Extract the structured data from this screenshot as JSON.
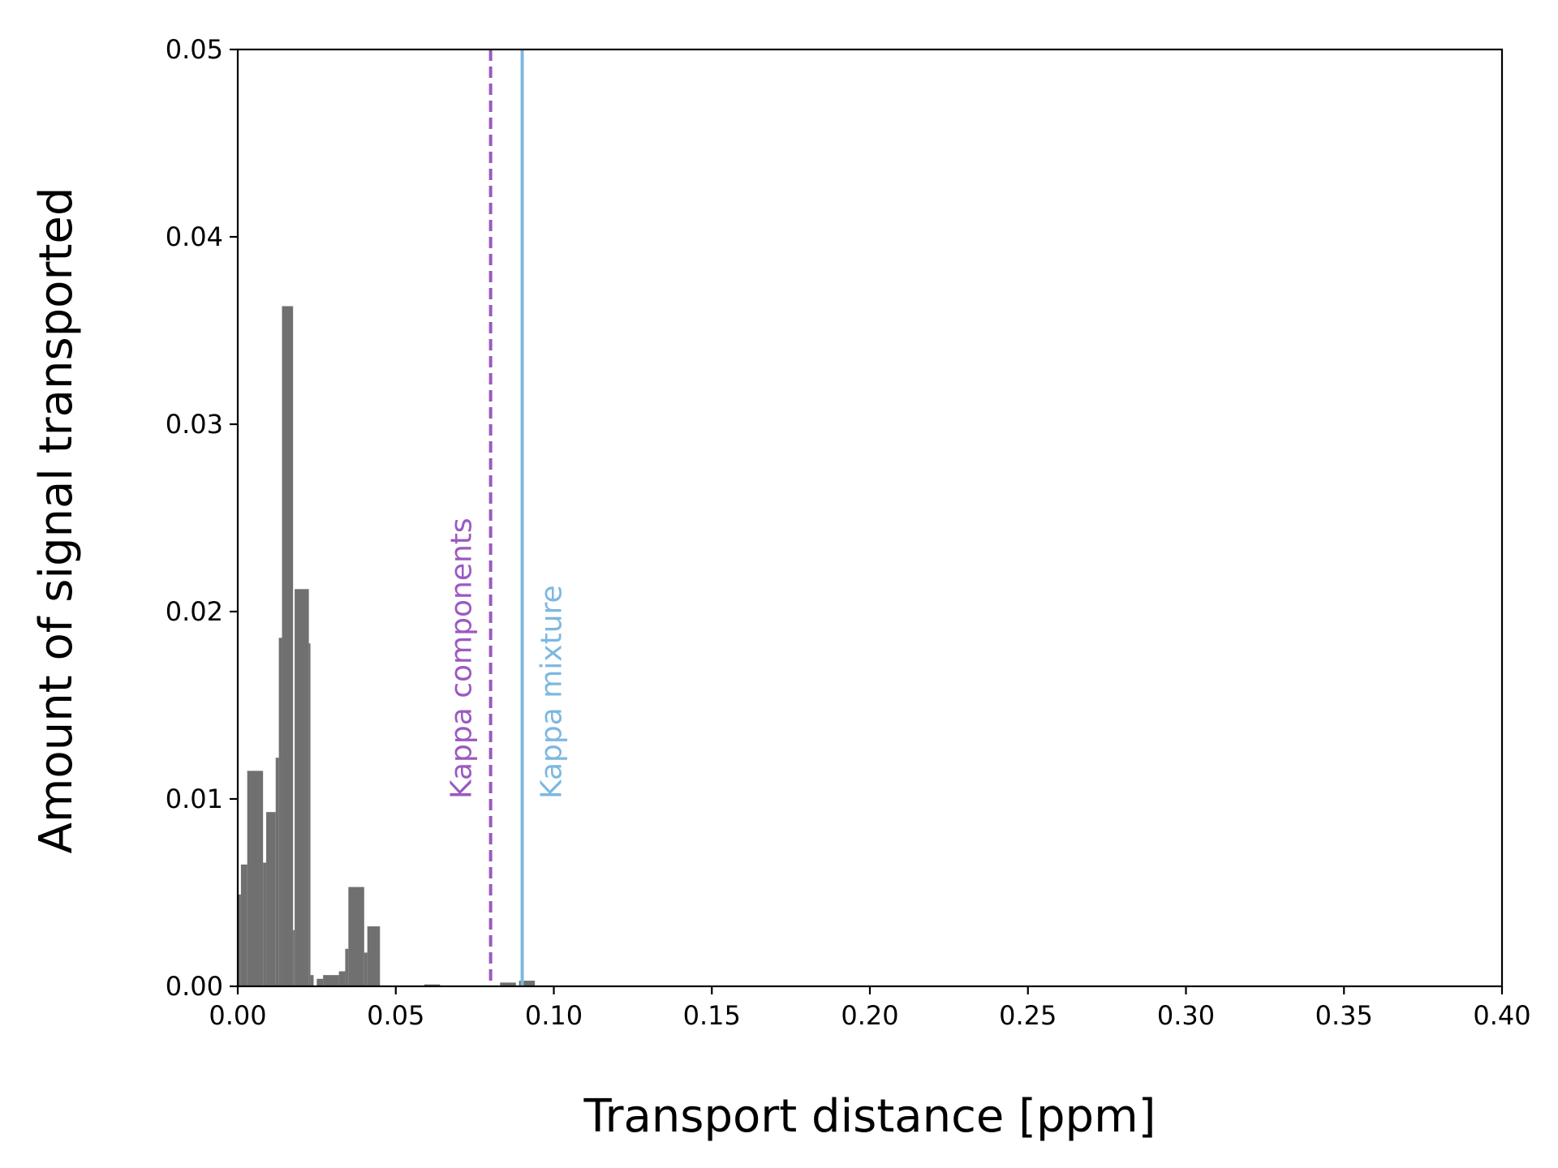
{
  "chart_data": {
    "type": "bar",
    "title": "",
    "xlabel": "Transport distance [ppm]",
    "ylabel": "Amount of signal transported",
    "xlim": [
      0,
      0.4
    ],
    "ylim": [
      0,
      0.05
    ],
    "xticks": [
      "0.00",
      "0.05",
      "0.10",
      "0.15",
      "0.20",
      "0.25",
      "0.30",
      "0.35",
      "0.40"
    ],
    "yticks": [
      "0.00",
      "0.01",
      "0.02",
      "0.03",
      "0.04",
      "0.05"
    ],
    "grid": false,
    "legend": "none",
    "bar_color": "#707070",
    "bars": [
      {
        "x0": 0.0,
        "x1": 0.001,
        "y": 0.0049
      },
      {
        "x0": 0.001,
        "x1": 0.003,
        "y": 0.0065
      },
      {
        "x0": 0.003,
        "x1": 0.008,
        "y": 0.0115
      },
      {
        "x0": 0.008,
        "x1": 0.009,
        "y": 0.0066
      },
      {
        "x0": 0.009,
        "x1": 0.012,
        "y": 0.0093
      },
      {
        "x0": 0.012,
        "x1": 0.013,
        "y": 0.0122
      },
      {
        "x0": 0.013,
        "x1": 0.014,
        "y": 0.0186
      },
      {
        "x0": 0.014,
        "x1": 0.0175,
        "y": 0.0363
      },
      {
        "x0": 0.0175,
        "x1": 0.018,
        "y": 0.003
      },
      {
        "x0": 0.018,
        "x1": 0.0225,
        "y": 0.0212
      },
      {
        "x0": 0.0225,
        "x1": 0.023,
        "y": 0.0183
      },
      {
        "x0": 0.023,
        "x1": 0.024,
        "y": 0.0006
      },
      {
        "x0": 0.025,
        "x1": 0.027,
        "y": 0.0004
      },
      {
        "x0": 0.027,
        "x1": 0.032,
        "y": 0.0006
      },
      {
        "x0": 0.032,
        "x1": 0.034,
        "y": 0.0008
      },
      {
        "x0": 0.034,
        "x1": 0.035,
        "y": 0.002
      },
      {
        "x0": 0.035,
        "x1": 0.04,
        "y": 0.0053
      },
      {
        "x0": 0.04,
        "x1": 0.041,
        "y": 0.0018
      },
      {
        "x0": 0.041,
        "x1": 0.045,
        "y": 0.0032
      },
      {
        "x0": 0.059,
        "x1": 0.064,
        "y": 0.0001
      },
      {
        "x0": 0.083,
        "x1": 0.088,
        "y": 0.0002
      },
      {
        "x0": 0.089,
        "x1": 0.094,
        "y": 0.0003
      }
    ],
    "vlines": [
      {
        "name": "Kappa components",
        "x": 0.08,
        "style": "dashed",
        "color": "#9b59c0",
        "label_y": 0.01,
        "label_side": "left"
      },
      {
        "name": "Kappa mixture",
        "x": 0.09,
        "style": "solid",
        "color": "#7db8e0",
        "label_y": 0.01,
        "label_side": "right"
      }
    ]
  }
}
